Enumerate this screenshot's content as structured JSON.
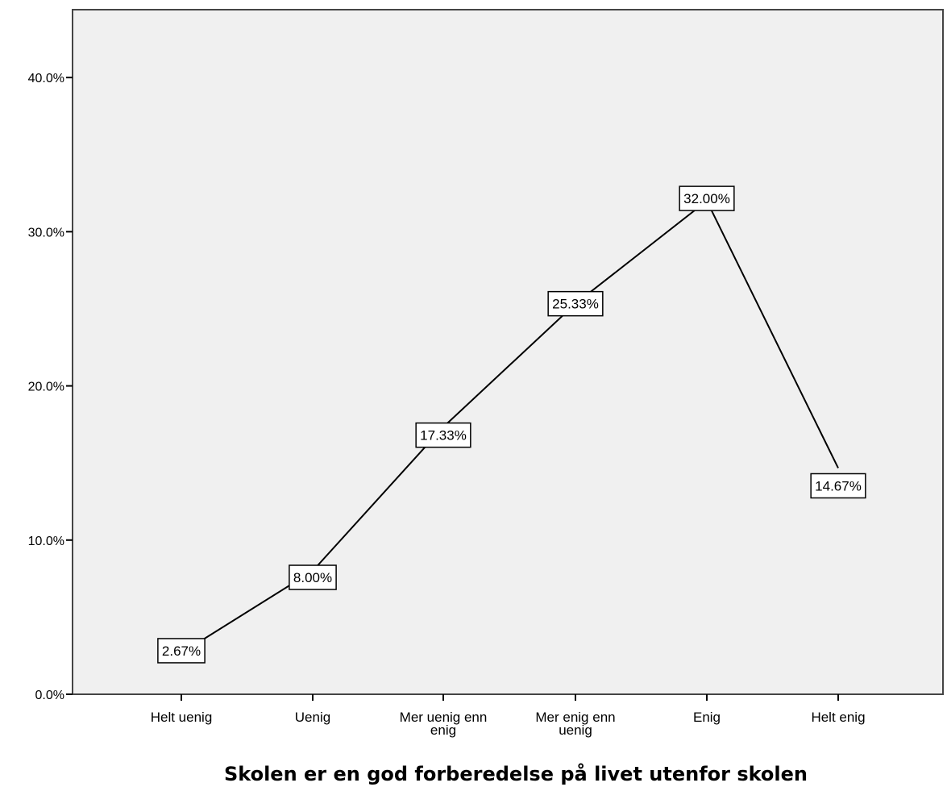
{
  "chart_data": {
    "type": "line",
    "title": "",
    "xlabel": "Skolen er en god forberedelse på livet utenfor skolen",
    "ylabel": "",
    "categories": [
      [
        "Helt uenig"
      ],
      [
        "Uenig"
      ],
      [
        "Mer uenig enn",
        "enig"
      ],
      [
        "Mer enig enn",
        "uenig"
      ],
      [
        "Enig"
      ],
      [
        "Helt enig"
      ]
    ],
    "values": [
      2.67,
      8.0,
      17.33,
      25.33,
      32.0,
      14.67
    ],
    "data_labels": [
      "2.67%",
      "8.00%",
      "17.33%",
      "25.33%",
      "32.00%",
      "14.67%"
    ],
    "yticks": [
      0,
      10,
      20,
      30,
      40
    ],
    "ytick_labels": [
      "0.0%",
      "10.0%",
      "20.0%",
      "30.0%",
      "40.0%"
    ],
    "ylim": [
      0,
      44.4
    ],
    "grid": false,
    "legend": false,
    "colors": {
      "plot_background": "#f0f0f0",
      "line": "#000000",
      "label_box": "#ffffff"
    }
  }
}
